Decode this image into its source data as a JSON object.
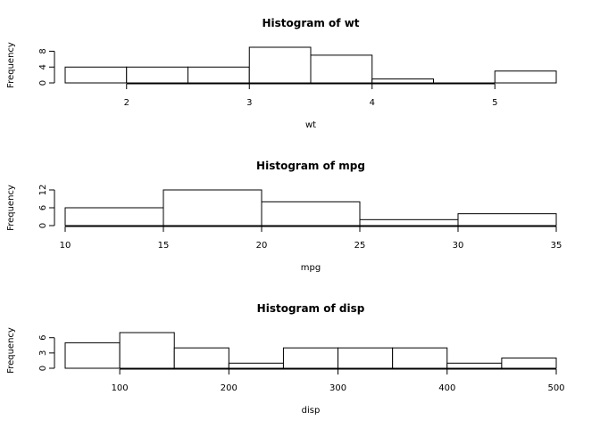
{
  "chart_data": [
    {
      "type": "bar",
      "title": "Histogram of wt",
      "xlabel": "wt",
      "ylabel": "Frequency",
      "bin_edges": [
        1.5,
        2.0,
        2.5,
        3.0,
        3.5,
        4.0,
        4.5,
        5.0,
        5.5
      ],
      "values": [
        4,
        4,
        4,
        9,
        7,
        1,
        0,
        3
      ],
      "xlim": [
        1.5,
        5.5
      ],
      "ylim": [
        0,
        9
      ],
      "xticks": [
        2,
        3,
        4,
        5
      ],
      "yticks": [
        0,
        4,
        8
      ],
      "grid": false
    },
    {
      "type": "bar",
      "title": "Histogram of mpg",
      "xlabel": "mpg",
      "ylabel": "Frequency",
      "bin_edges": [
        10,
        15,
        20,
        25,
        30,
        35
      ],
      "values": [
        6,
        12,
        8,
        2,
        4
      ],
      "xlim": [
        10,
        35
      ],
      "ylim": [
        0,
        12
      ],
      "xticks": [
        10,
        15,
        20,
        25,
        30,
        35
      ],
      "yticks": [
        0,
        6,
        12
      ],
      "grid": false
    },
    {
      "type": "bar",
      "title": "Histogram of disp",
      "xlabel": "disp",
      "ylabel": "Frequency",
      "bin_edges": [
        50,
        100,
        150,
        200,
        250,
        300,
        350,
        400,
        450,
        500
      ],
      "values": [
        5,
        7,
        4,
        1,
        4,
        4,
        4,
        1,
        2
      ],
      "xlim": [
        50,
        500
      ],
      "ylim": [
        0,
        7
      ],
      "xticks": [
        100,
        200,
        300,
        400,
        500
      ],
      "yticks": [
        0,
        3,
        6
      ],
      "grid": false
    }
  ]
}
